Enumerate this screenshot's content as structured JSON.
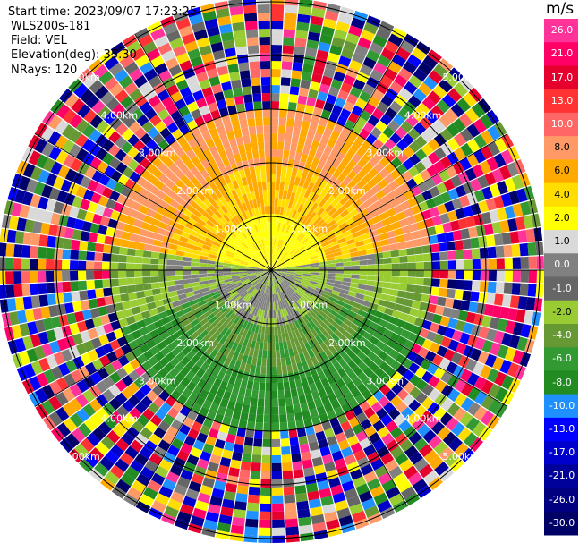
{
  "info": {
    "start_time": "Start time: 2023/09/07 17:23:25",
    "station": "WLS200s-181",
    "field": "Field: VEL",
    "elevation": "Elevation(deg): 35.30",
    "nrays": "NRays: 120"
  },
  "chart_data": {
    "type": "heatmap",
    "projection": "polar PPI",
    "field": "VEL",
    "unit": "m/s",
    "nrays": 120,
    "elevation_deg": 35.3,
    "range_ring_labels": [
      "1.00km",
      "2.00km",
      "3.00km",
      "4.00km",
      "5.00km"
    ],
    "range_rings_km": [
      1,
      2,
      3,
      4,
      5
    ],
    "max_range_km": 5.6,
    "valid_data_range_km": 3.0,
    "colorbar": {
      "title": "m/s",
      "ticks": [
        "26.0",
        "21.0",
        "17.0",
        "13.0",
        "10.0",
        "8.0",
        "6.0",
        "4.0",
        "2.0",
        "1.0",
        "0.0",
        "-1.0",
        "-2.0",
        "-4.0",
        "-6.0",
        "-8.0",
        "-10.0",
        "-13.0",
        "-17.0",
        "-21.0",
        "-26.0",
        "-30.0"
      ],
      "colors": [
        "#ff3399",
        "#ff0066",
        "#e6002e",
        "#ff3333",
        "#ff6666",
        "#ff9966",
        "#ffaa00",
        "#ffdd00",
        "#ffff00",
        "#d9d9d9",
        "#808080",
        "#666666",
        "#99cc33",
        "#669933",
        "#339933",
        "#228b22",
        "#1e90ff",
        "#0000ff",
        "#0000cc",
        "#00009a",
        "#000080",
        "#000066"
      ]
    },
    "approx_pattern": [
      {
        "range_km": "0-1",
        "north_half": "yellow (+2 to +4 m/s)",
        "south_half": "gray (0 m/s)"
      },
      {
        "range_km": "1-2",
        "north_half": "orange/yellow (+4 to +8 m/s)",
        "south_half": "green (-2 to -6 m/s)"
      },
      {
        "range_km": "2-3",
        "north_half": "light orange (+6 to +10 m/s)",
        "south_half": "green/blue (-4 to -10 m/s)"
      },
      {
        "range_km": ">3",
        "all": "noise (random values)"
      }
    ]
  }
}
